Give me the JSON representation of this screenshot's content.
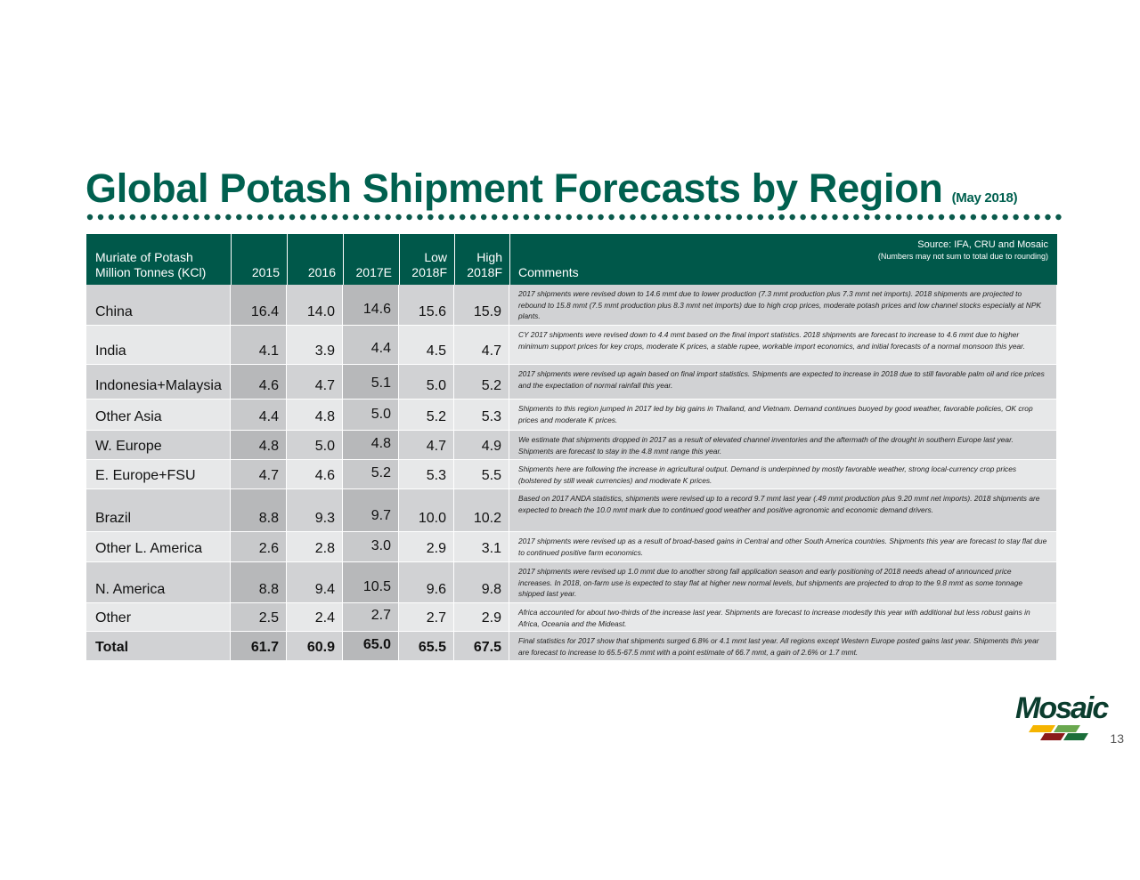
{
  "title": "Global Potash Shipment Forecasts by Region",
  "subtitle": "(May 2018)",
  "table": {
    "header": {
      "label": [
        "Muriate of Potash",
        "Million Tonnes (KCl)"
      ],
      "columns": [
        [
          "2015"
        ],
        [
          "2016"
        ],
        [
          "2017E"
        ],
        [
          "Low",
          "2018F"
        ],
        [
          "High",
          "2018F"
        ]
      ],
      "comments": "Comments",
      "source": "Source:  IFA, CRU and Mosaic",
      "note": "(Numbers may not sum to total due to rounding)"
    },
    "rows": [
      {
        "region": "China",
        "values": [
          "16.4",
          "14.0",
          "14.6",
          "15.6",
          "15.9"
        ],
        "comment": "2017 shipments were revised down to 14.6 mmt due to lower production (7.3 mmt production plus 7.3 mmt net imports). 2018 shipments are projected to rebound to 15.8 mmt (7.5 mmt production plus 8.3 mmt net imports) due to high crop prices, moderate potash prices and low channel stocks especially at NPK plants."
      },
      {
        "region": "India",
        "values": [
          "4.1",
          "3.9",
          "4.4",
          "4.5",
          "4.7"
        ],
        "comment": "CY 2017 shipments were revised down to 4.4 mmt based on the final import statistics. 2018 shipments are forecast to increase to 4.6 mmt due to higher minimum support prices for key crops, moderate K prices, a stable rupee, workable import economics, and initial forecasts of a normal monsoon this year."
      },
      {
        "region": "Indonesia+Malaysia",
        "values": [
          "4.6",
          "4.7",
          "5.1",
          "5.0",
          "5.2"
        ],
        "comment": "2017 shipments were revised up again based on final import statistics. Shipments are expected to increase in 2018 due to still favorable palm oil and rice prices and the expectation of normal rainfall this year."
      },
      {
        "region": "Other Asia",
        "values": [
          "4.4",
          "4.8",
          "5.0",
          "5.2",
          "5.3"
        ],
        "comment": "Shipments to this region jumped in 2017 led by big gains in Thailand, and Vietnam. Demand continues buoyed by good weather, favorable policies, OK crop prices and moderate K prices."
      },
      {
        "region": "W. Europe",
        "values": [
          "4.8",
          "5.0",
          "4.8",
          "4.7",
          "4.9"
        ],
        "comment": "We estimate that shipments dropped in 2017 as a result of elevated channel inventories and the aftermath of the drought in southern Europe last year. Shipments are forecast to stay in the 4.8 mmt range this year."
      },
      {
        "region": "E. Europe+FSU",
        "values": [
          "4.7",
          "4.6",
          "5.2",
          "5.3",
          "5.5"
        ],
        "comment": "Shipments here are following the increase in agricultural output. Demand is underpinned by mostly favorable weather, strong local-currency crop prices  (bolstered by still weak currencies) and moderate K prices."
      },
      {
        "region": "Brazil",
        "values": [
          "8.8",
          "9.3",
          "9.7",
          "10.0",
          "10.2"
        ],
        "comment": "Based on 2017 ANDA statistics, shipments were revised up to a record 9.7 mmt last year (.49 mmt production plus 9.20 mmt net imports). 2018 shipments are expected to breach the 10.0 mmt mark due to continued good weather and positive agronomic and economic demand drivers."
      },
      {
        "region": "Other L. America",
        "values": [
          "2.6",
          "2.8",
          "3.0",
          "2.9",
          "3.1"
        ],
        "comment": "2017 shipments were revised up as a result of broad-based gains in Central and other South America countries. Shipments this year are forecast to stay flat due to continued positive farm economics."
      },
      {
        "region": "N. America",
        "values": [
          "8.8",
          "9.4",
          "10.5",
          "9.6",
          "9.8"
        ],
        "comment": "2017 shipments were revised up 1.0 mmt due to another strong fall application season and early positioning of 2018 needs ahead of announced price increases. In 2018, on-farm use is expected to stay flat at higher new normal levels, but shipments are projected to drop to the 9.8 mmt as some tonnage shipped last year."
      },
      {
        "region": "Other",
        "values": [
          "2.5",
          "2.4",
          "2.7",
          "2.7",
          "2.9"
        ],
        "comment": "Africa accounted for about two-thirds of the increase last year. Shipments are forecast to increase modestly this year with additional but less robust gains in Africa, Oceania and the Mideast."
      },
      {
        "region": "Total",
        "values": [
          "61.7",
          "60.9",
          "65.0",
          "65.5",
          "67.5"
        ],
        "comment": "Final statistics for 2017 show that shipments surged 6.8% or 4.1 mmt last year.  All regions except Western Europe posted gains last year. Shipments this year are forecast to increase to 65.5-67.5 mmt with a point estimate of 66.7 mmt, a gain of 2.6% or 1.7 mmt."
      }
    ]
  },
  "logo": "Mosaic",
  "page_number": "13"
}
